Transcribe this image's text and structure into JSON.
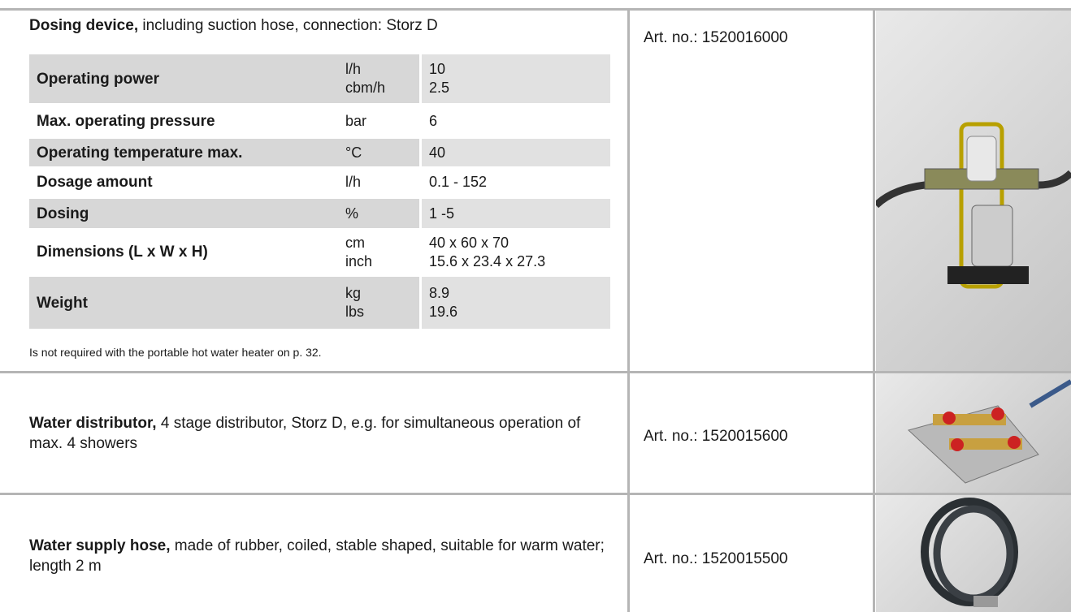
{
  "products": [
    {
      "name": "Dosing device,",
      "description": " including suction hose, connection: Storz D",
      "art_no": "Art. no.: 1520016000",
      "specs": [
        {
          "label": "Operating power",
          "units": [
            "l/h",
            "cbm/h"
          ],
          "values": [
            "10",
            "2.5"
          ]
        },
        {
          "label": "Max. operating pressure",
          "units": [
            "bar"
          ],
          "values": [
            "6"
          ]
        },
        {
          "label": "Operating temperature max.",
          "units": [
            "°C"
          ],
          "values": [
            "40"
          ]
        },
        {
          "label": "Dosage amount",
          "units": [
            "l/h"
          ],
          "values": [
            "0.1 - 152"
          ]
        },
        {
          "label": "Dosing",
          "units": [
            "%"
          ],
          "values": [
            "1 -5"
          ]
        },
        {
          "label": "Dimensions (L x W x H)",
          "units": [
            "cm",
            "inch"
          ],
          "values": [
            "40 x 60 x 70",
            "15.6 x 23.4 x 27.3"
          ]
        },
        {
          "label": "Weight",
          "units": [
            "kg",
            "lbs"
          ],
          "values": [
            "8.9",
            "19.6"
          ]
        }
      ],
      "note": "Is not required with the portable hot water heater on p. 32."
    },
    {
      "name": "Water distributor,",
      "description": " 4 stage distributor, Storz D, e.g. for simultaneous operation of max. 4 showers",
      "art_no": "Art. no.: 1520015600"
    },
    {
      "name": "Water supply hose,",
      "description": " made of rubber, coiled, stable shaped, suitable for warm water; length 2 m",
      "art_no": "Art. no.: 1520015500"
    }
  ]
}
